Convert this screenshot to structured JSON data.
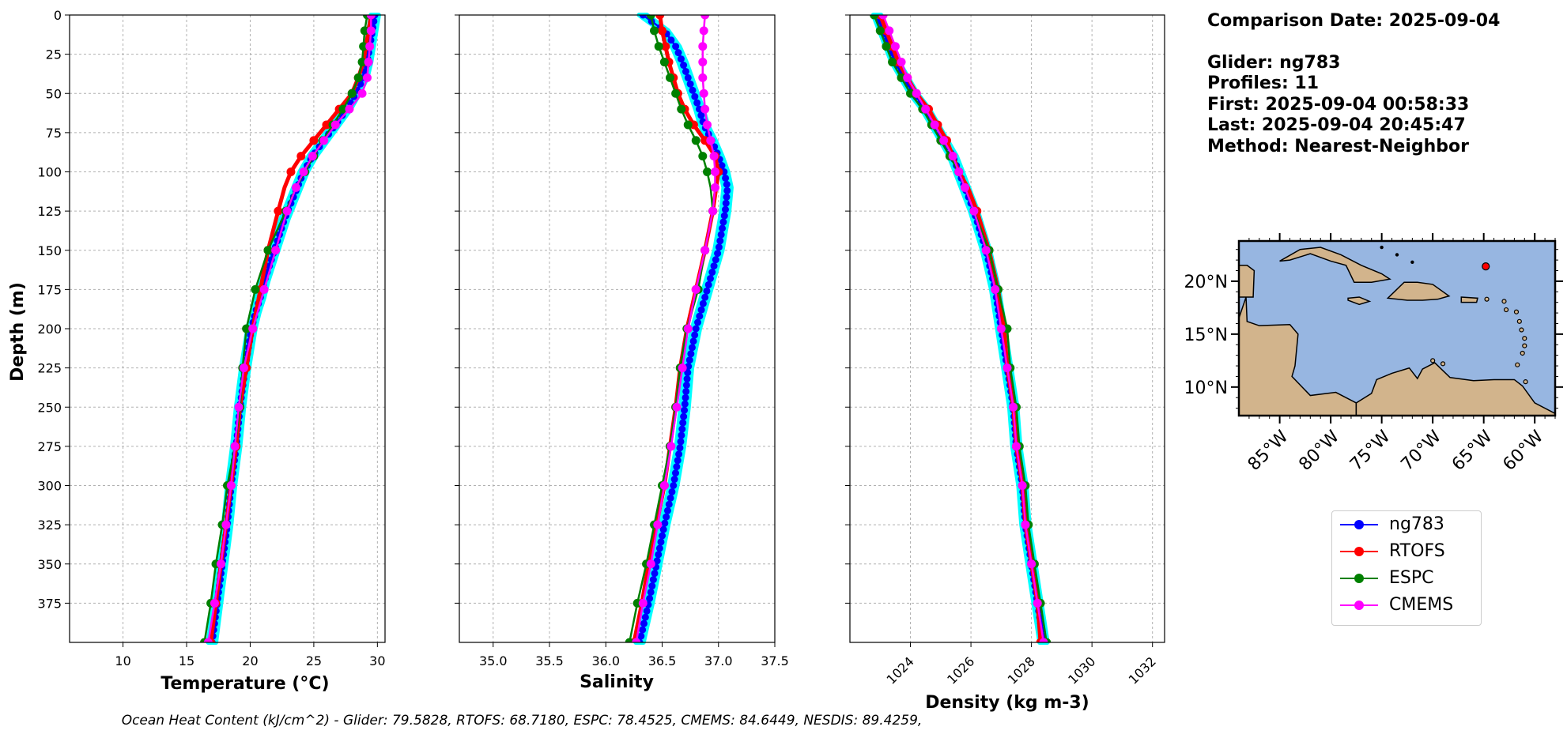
{
  "info": {
    "line1": "Comparison Date: 2025-09-04",
    "line2": "Glider: ng783",
    "line3": "Profiles: 11",
    "line4": "First: 2025-09-04 00:58:33",
    "line5": "Last: 2025-09-04 20:45:47",
    "line6": "Method: Nearest-Neighbor"
  },
  "footer": "Ocean Heat Content (kJ/cm^2) - Glider: 79.5828,  RTOFS: 68.7180,  ESPC: 78.4525,  CMEMS: 84.6449,  NESDIS: 89.4259,",
  "legend": [
    {
      "name": "ng783",
      "color": "#0000ff"
    },
    {
      "name": "RTOFS",
      "color": "#ff0000"
    },
    {
      "name": "ESPC",
      "color": "#008000"
    },
    {
      "name": "CMEMS",
      "color": "#ff00ff"
    }
  ],
  "colors": {
    "raw_glider": "#00ffff",
    "land": "#d2b48c",
    "ocean": "#97b6e1"
  },
  "map": {
    "lat_ticks": [
      "20°N",
      "15°N",
      "10°N"
    ],
    "lon_ticks": [
      "85°W",
      "80°W",
      "75°W",
      "70°W",
      "65°W",
      "60°W"
    ],
    "lon_range": [
      -89,
      -58
    ],
    "lat_range": [
      7.3,
      23.8
    ],
    "glider_position": {
      "lon": -64.8,
      "lat": 21.4
    }
  },
  "chart_data": [
    {
      "type": "line",
      "xlabel": "Temperature (°C)",
      "ylabel": "Depth (m)",
      "xlim": [
        5.8,
        30.6
      ],
      "ylim": [
        400,
        0
      ],
      "xticks": [
        10,
        15,
        20,
        25,
        30
      ],
      "yticks": [
        0,
        25,
        50,
        75,
        100,
        125,
        150,
        175,
        200,
        225,
        250,
        275,
        300,
        325,
        350,
        375
      ],
      "grid": true,
      "series": [
        {
          "name": "ng783",
          "depth": [
            0,
            10,
            20,
            30,
            40,
            50,
            60,
            70,
            80,
            90,
            100,
            110,
            120,
            130,
            140,
            150,
            160,
            170,
            180,
            190,
            200,
            225,
            250,
            275,
            300,
            325,
            350,
            375,
            400
          ],
          "values": [
            29.8,
            29.6,
            29.4,
            29.2,
            28.9,
            28.3,
            27.6,
            26.7,
            25.8,
            24.9,
            24.2,
            23.7,
            23.2,
            22.7,
            22.3,
            21.9,
            21.5,
            21.1,
            20.8,
            20.4,
            20.1,
            19.6,
            19.2,
            18.9,
            18.5,
            18.2,
            17.8,
            17.4,
            17.0
          ]
        },
        {
          "name": "RTOFS",
          "depth": [
            0,
            10,
            20,
            30,
            40,
            50,
            60,
            70,
            80,
            90,
            100,
            110,
            125,
            150,
            175,
            200,
            225,
            250,
            275,
            300,
            325,
            350,
            375,
            400
          ],
          "values": [
            29.5,
            29.3,
            29.1,
            28.9,
            28.5,
            28.0,
            27.0,
            26.0,
            25.0,
            24.0,
            23.2,
            22.7,
            22.2,
            21.4,
            20.8,
            20.2,
            19.7,
            19.2,
            18.9,
            18.5,
            18.1,
            17.7,
            17.3,
            16.9
          ]
        },
        {
          "name": "ESPC",
          "depth": [
            0,
            10,
            20,
            30,
            40,
            50,
            60,
            70,
            80,
            90,
            100,
            110,
            125,
            150,
            175,
            200,
            225,
            250,
            275,
            300,
            325,
            350,
            375,
            400
          ],
          "values": [
            29.2,
            29.0,
            28.9,
            28.8,
            28.5,
            28.0,
            27.3,
            26.5,
            25.7,
            25.0,
            24.3,
            23.6,
            22.8,
            21.4,
            20.4,
            19.7,
            19.4,
            19.2,
            18.8,
            18.2,
            17.8,
            17.3,
            16.9,
            16.4
          ]
        },
        {
          "name": "CMEMS",
          "depth": [
            0,
            10,
            20,
            30,
            40,
            50,
            60,
            70,
            80,
            90,
            100,
            110,
            125,
            150,
            175,
            200,
            225,
            250,
            275,
            300,
            325,
            350,
            375,
            400
          ],
          "values": [
            29.5,
            29.5,
            29.4,
            29.3,
            29.2,
            28.8,
            27.8,
            26.7,
            25.8,
            24.9,
            24.2,
            23.6,
            22.9,
            22.0,
            21.1,
            20.2,
            19.5,
            19.1,
            18.8,
            18.5,
            18.1,
            17.7,
            17.2,
            16.7
          ]
        }
      ]
    },
    {
      "type": "line",
      "xlabel": "Salinity",
      "xlim": [
        34.7,
        37.5
      ],
      "ylim": [
        400,
        0
      ],
      "xticks": [
        35.0,
        35.5,
        36.0,
        36.5,
        37.0,
        37.5
      ],
      "grid": true,
      "series": [
        {
          "name": "ng783",
          "depth": [
            0,
            10,
            20,
            30,
            40,
            50,
            60,
            70,
            80,
            90,
            100,
            110,
            125,
            150,
            175,
            200,
            225,
            250,
            275,
            300,
            325,
            350,
            375,
            400
          ],
          "values": [
            36.33,
            36.52,
            36.62,
            36.68,
            36.73,
            36.78,
            36.83,
            36.87,
            36.94,
            37.0,
            37.05,
            37.08,
            37.06,
            37.0,
            36.9,
            36.8,
            36.73,
            36.7,
            36.66,
            36.6,
            36.52,
            36.45,
            36.38,
            36.3
          ]
        },
        {
          "name": "RTOFS",
          "depth": [
            0,
            10,
            20,
            30,
            40,
            50,
            60,
            70,
            80,
            90,
            100,
            110,
            125,
            150,
            175,
            200,
            225,
            250,
            275,
            300,
            325,
            350,
            375,
            400
          ],
          "values": [
            36.48,
            36.5,
            36.53,
            36.56,
            36.6,
            36.64,
            36.7,
            36.78,
            36.88,
            36.97,
            37.0,
            36.98,
            36.95,
            36.88,
            36.8,
            36.72,
            36.66,
            36.62,
            36.57,
            36.52,
            36.45,
            36.38,
            36.32,
            36.25
          ]
        },
        {
          "name": "ESPC",
          "depth": [
            0,
            10,
            20,
            30,
            40,
            50,
            60,
            70,
            80,
            90,
            100,
            110,
            125,
            150,
            175,
            200,
            225,
            250,
            275,
            300,
            325,
            350,
            375,
            400
          ],
          "values": [
            36.4,
            36.43,
            36.47,
            36.52,
            36.57,
            36.62,
            36.67,
            36.73,
            36.8,
            36.86,
            36.9,
            36.93,
            36.95,
            36.88,
            36.82,
            36.72,
            36.66,
            36.62,
            36.57,
            36.5,
            36.43,
            36.36,
            36.28,
            36.21
          ]
        },
        {
          "name": "CMEMS",
          "depth": [
            0,
            10,
            20,
            30,
            40,
            50,
            60,
            70,
            80,
            90,
            100,
            110,
            125,
            150,
            175,
            200,
            225,
            250,
            275,
            300,
            325,
            350,
            375,
            400
          ],
          "values": [
            36.88,
            36.87,
            36.86,
            36.86,
            36.86,
            36.87,
            36.88,
            36.9,
            36.93,
            36.96,
            36.97,
            36.97,
            36.95,
            36.88,
            36.8,
            36.73,
            36.68,
            36.63,
            36.58,
            36.52,
            36.46,
            36.4,
            36.33,
            36.27
          ]
        }
      ]
    },
    {
      "type": "line",
      "xlabel": "Density (kg m-3)",
      "xlim": [
        1022.0,
        1032.4
      ],
      "ylim": [
        400,
        0
      ],
      "xticks": [
        1024,
        1026,
        1028,
        1030,
        1032
      ],
      "grid": true,
      "series": [
        {
          "name": "ng783",
          "depth": [
            0,
            10,
            20,
            30,
            40,
            50,
            60,
            70,
            80,
            90,
            100,
            110,
            125,
            150,
            175,
            200,
            225,
            250,
            275,
            300,
            325,
            350,
            375,
            400
          ],
          "values": [
            1022.9,
            1023.1,
            1023.3,
            1023.5,
            1023.8,
            1024.1,
            1024.5,
            1024.8,
            1025.1,
            1025.4,
            1025.6,
            1025.8,
            1026.1,
            1026.5,
            1026.8,
            1027.0,
            1027.2,
            1027.4,
            1027.5,
            1027.7,
            1027.8,
            1028.0,
            1028.2,
            1028.4
          ]
        },
        {
          "name": "RTOFS",
          "depth": [
            0,
            10,
            20,
            30,
            40,
            50,
            60,
            70,
            80,
            90,
            100,
            110,
            125,
            150,
            175,
            200,
            225,
            250,
            275,
            300,
            325,
            350,
            375,
            400
          ],
          "values": [
            1023.0,
            1023.2,
            1023.4,
            1023.6,
            1023.9,
            1024.2,
            1024.6,
            1024.9,
            1025.2,
            1025.4,
            1025.6,
            1025.9,
            1026.2,
            1026.6,
            1026.9,
            1027.1,
            1027.2,
            1027.4,
            1027.5,
            1027.7,
            1027.8,
            1028.0,
            1028.2,
            1028.3
          ]
        },
        {
          "name": "ESPC",
          "depth": [
            0,
            10,
            20,
            30,
            40,
            50,
            60,
            70,
            80,
            90,
            100,
            110,
            125,
            150,
            175,
            200,
            225,
            250,
            275,
            300,
            325,
            350,
            375,
            400
          ],
          "values": [
            1022.8,
            1023.0,
            1023.2,
            1023.4,
            1023.7,
            1024.0,
            1024.4,
            1024.7,
            1025.0,
            1025.3,
            1025.6,
            1025.8,
            1026.1,
            1026.6,
            1026.9,
            1027.2,
            1027.3,
            1027.5,
            1027.6,
            1027.8,
            1027.9,
            1028.1,
            1028.3,
            1028.5
          ]
        },
        {
          "name": "CMEMS",
          "depth": [
            0,
            10,
            20,
            30,
            40,
            50,
            60,
            70,
            80,
            90,
            100,
            110,
            125,
            150,
            175,
            200,
            225,
            250,
            275,
            300,
            325,
            350,
            375,
            400
          ],
          "values": [
            1023.1,
            1023.3,
            1023.5,
            1023.7,
            1023.9,
            1024.2,
            1024.5,
            1024.8,
            1025.1,
            1025.4,
            1025.6,
            1025.8,
            1026.1,
            1026.5,
            1026.8,
            1027.0,
            1027.2,
            1027.4,
            1027.5,
            1027.7,
            1027.8,
            1028.0,
            1028.2,
            1028.4
          ]
        }
      ]
    }
  ]
}
